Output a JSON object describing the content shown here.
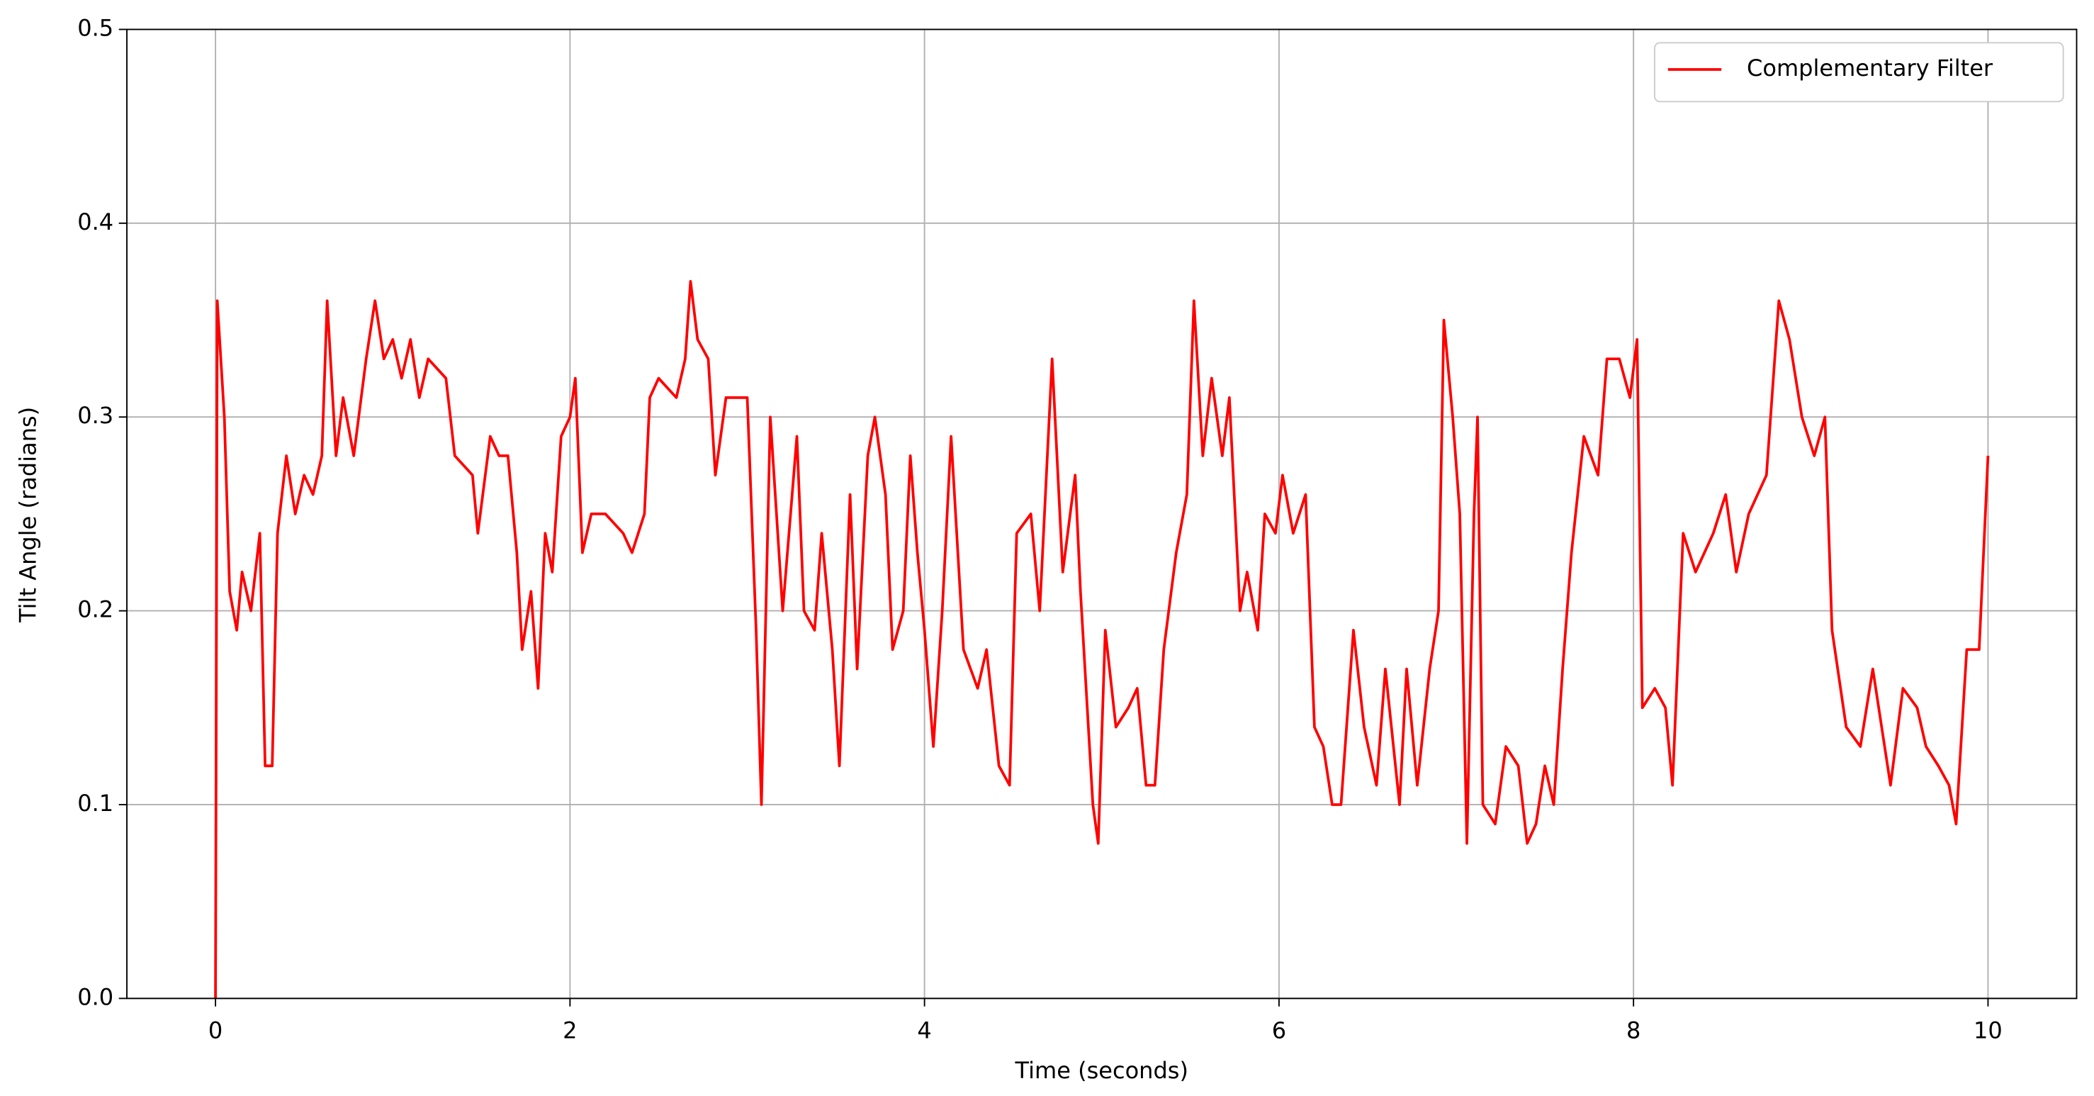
{
  "chart_data": {
    "type": "line",
    "x_label": "Time (seconds)",
    "y_label": "Tilt Angle (radians)",
    "xlim": [
      -0.5,
      10.5
    ],
    "ylim": [
      0,
      0.5
    ],
    "xticks": [
      0,
      2,
      4,
      6,
      8,
      10
    ],
    "yticks": [
      {
        "value": 0,
        "label": "0.0"
      },
      0.1,
      0.2,
      0.3,
      0.4,
      0.5
    ],
    "grid": true,
    "legend": "upper right",
    "x": [
      0,
      0.01,
      0.05,
      0.08,
      0.12,
      0.15,
      0.2,
      0.25,
      0.28,
      0.32,
      0.35,
      0.4,
      0.45,
      0.5,
      0.55,
      0.6,
      0.63,
      0.68,
      0.72,
      0.78,
      0.85,
      0.9,
      0.95,
      1.0,
      1.05,
      1.1,
      1.15,
      1.2,
      1.3,
      1.35,
      1.45,
      1.48,
      1.55,
      1.6,
      1.65,
      1.7,
      1.73,
      1.78,
      1.82,
      1.86,
      1.9,
      1.95,
      2.0,
      2.03,
      2.07,
      2.12,
      2.2,
      2.3,
      2.35,
      2.42,
      2.45,
      2.5,
      2.6,
      2.65,
      2.68,
      2.72,
      2.78,
      2.82,
      2.88,
      2.95,
      3.0,
      3.05,
      3.08,
      3.13,
      3.2,
      3.28,
      3.32,
      3.38,
      3.42,
      3.48,
      3.52,
      3.58,
      3.62,
      3.68,
      3.72,
      3.78,
      3.82,
      3.88,
      3.92,
      3.96,
      4.0,
      4.05,
      4.1,
      4.15,
      4.22,
      4.3,
      4.35,
      4.42,
      4.48,
      4.52,
      4.6,
      4.65,
      4.72,
      4.78,
      4.85,
      4.88,
      4.95,
      4.98,
      5.02,
      5.08,
      5.15,
      5.2,
      5.25,
      5.3,
      5.35,
      5.42,
      5.48,
      5.52,
      5.57,
      5.62,
      5.68,
      5.72,
      5.78,
      5.82,
      5.88,
      5.92,
      5.98,
      6.02,
      6.08,
      6.15,
      6.2,
      6.25,
      6.3,
      6.35,
      6.42,
      6.48,
      6.55,
      6.6,
      6.68,
      6.72,
      6.78,
      6.85,
      6.9,
      6.93,
      6.98,
      7.02,
      7.06,
      7.1,
      7.12,
      7.15,
      7.22,
      7.28,
      7.35,
      7.4,
      7.45,
      7.5,
      7.55,
      7.6,
      7.65,
      7.72,
      7.8,
      7.85,
      7.92,
      7.98,
      8.02,
      8.05,
      8.12,
      8.18,
      8.22,
      8.28,
      8.35,
      8.45,
      8.52,
      8.58,
      8.65,
      8.75,
      8.82,
      8.88,
      8.95,
      9.02,
      9.08,
      9.12,
      9.2,
      9.28,
      9.35,
      9.4,
      9.45,
      9.52,
      9.6,
      9.65,
      9.72,
      9.78,
      9.82,
      9.88,
      9.95,
      10.0
    ],
    "series": [
      {
        "name": "Complementary Filter",
        "color": "#ff0000",
        "values": [
          0.0,
          0.36,
          0.3,
          0.21,
          0.19,
          0.22,
          0.2,
          0.24,
          0.12,
          0.12,
          0.24,
          0.28,
          0.25,
          0.27,
          0.26,
          0.28,
          0.36,
          0.28,
          0.31,
          0.28,
          0.33,
          0.36,
          0.33,
          0.34,
          0.32,
          0.34,
          0.31,
          0.33,
          0.32,
          0.28,
          0.27,
          0.24,
          0.29,
          0.28,
          0.28,
          0.23,
          0.18,
          0.21,
          0.16,
          0.24,
          0.22,
          0.29,
          0.3,
          0.32,
          0.23,
          0.25,
          0.25,
          0.24,
          0.23,
          0.25,
          0.31,
          0.32,
          0.31,
          0.33,
          0.37,
          0.34,
          0.33,
          0.27,
          0.31,
          0.31,
          0.31,
          0.19,
          0.1,
          0.3,
          0.2,
          0.29,
          0.2,
          0.19,
          0.24,
          0.18,
          0.12,
          0.26,
          0.17,
          0.28,
          0.3,
          0.26,
          0.18,
          0.2,
          0.28,
          0.23,
          0.19,
          0.13,
          0.2,
          0.29,
          0.18,
          0.16,
          0.18,
          0.12,
          0.11,
          0.24,
          0.25,
          0.2,
          0.33,
          0.22,
          0.27,
          0.21,
          0.1,
          0.08,
          0.19,
          0.14,
          0.15,
          0.16,
          0.11,
          0.11,
          0.18,
          0.23,
          0.26,
          0.36,
          0.28,
          0.32,
          0.28,
          0.31,
          0.2,
          0.22,
          0.19,
          0.25,
          0.24,
          0.27,
          0.24,
          0.26,
          0.14,
          0.13,
          0.1,
          0.1,
          0.19,
          0.14,
          0.11,
          0.17,
          0.1,
          0.17,
          0.11,
          0.17,
          0.2,
          0.35,
          0.3,
          0.25,
          0.08,
          0.25,
          0.3,
          0.1,
          0.09,
          0.13,
          0.12,
          0.08,
          0.09,
          0.12,
          0.1,
          0.17,
          0.23,
          0.29,
          0.27,
          0.33,
          0.33,
          0.31,
          0.34,
          0.15,
          0.16,
          0.15,
          0.11,
          0.24,
          0.22,
          0.24,
          0.26,
          0.22,
          0.25,
          0.27,
          0.36,
          0.34,
          0.3,
          0.28,
          0.3,
          0.19,
          0.14,
          0.13,
          0.17,
          0.14,
          0.11,
          0.16,
          0.15,
          0.13,
          0.12,
          0.11,
          0.09,
          0.18,
          0.18,
          0.28
        ]
      }
    ]
  }
}
